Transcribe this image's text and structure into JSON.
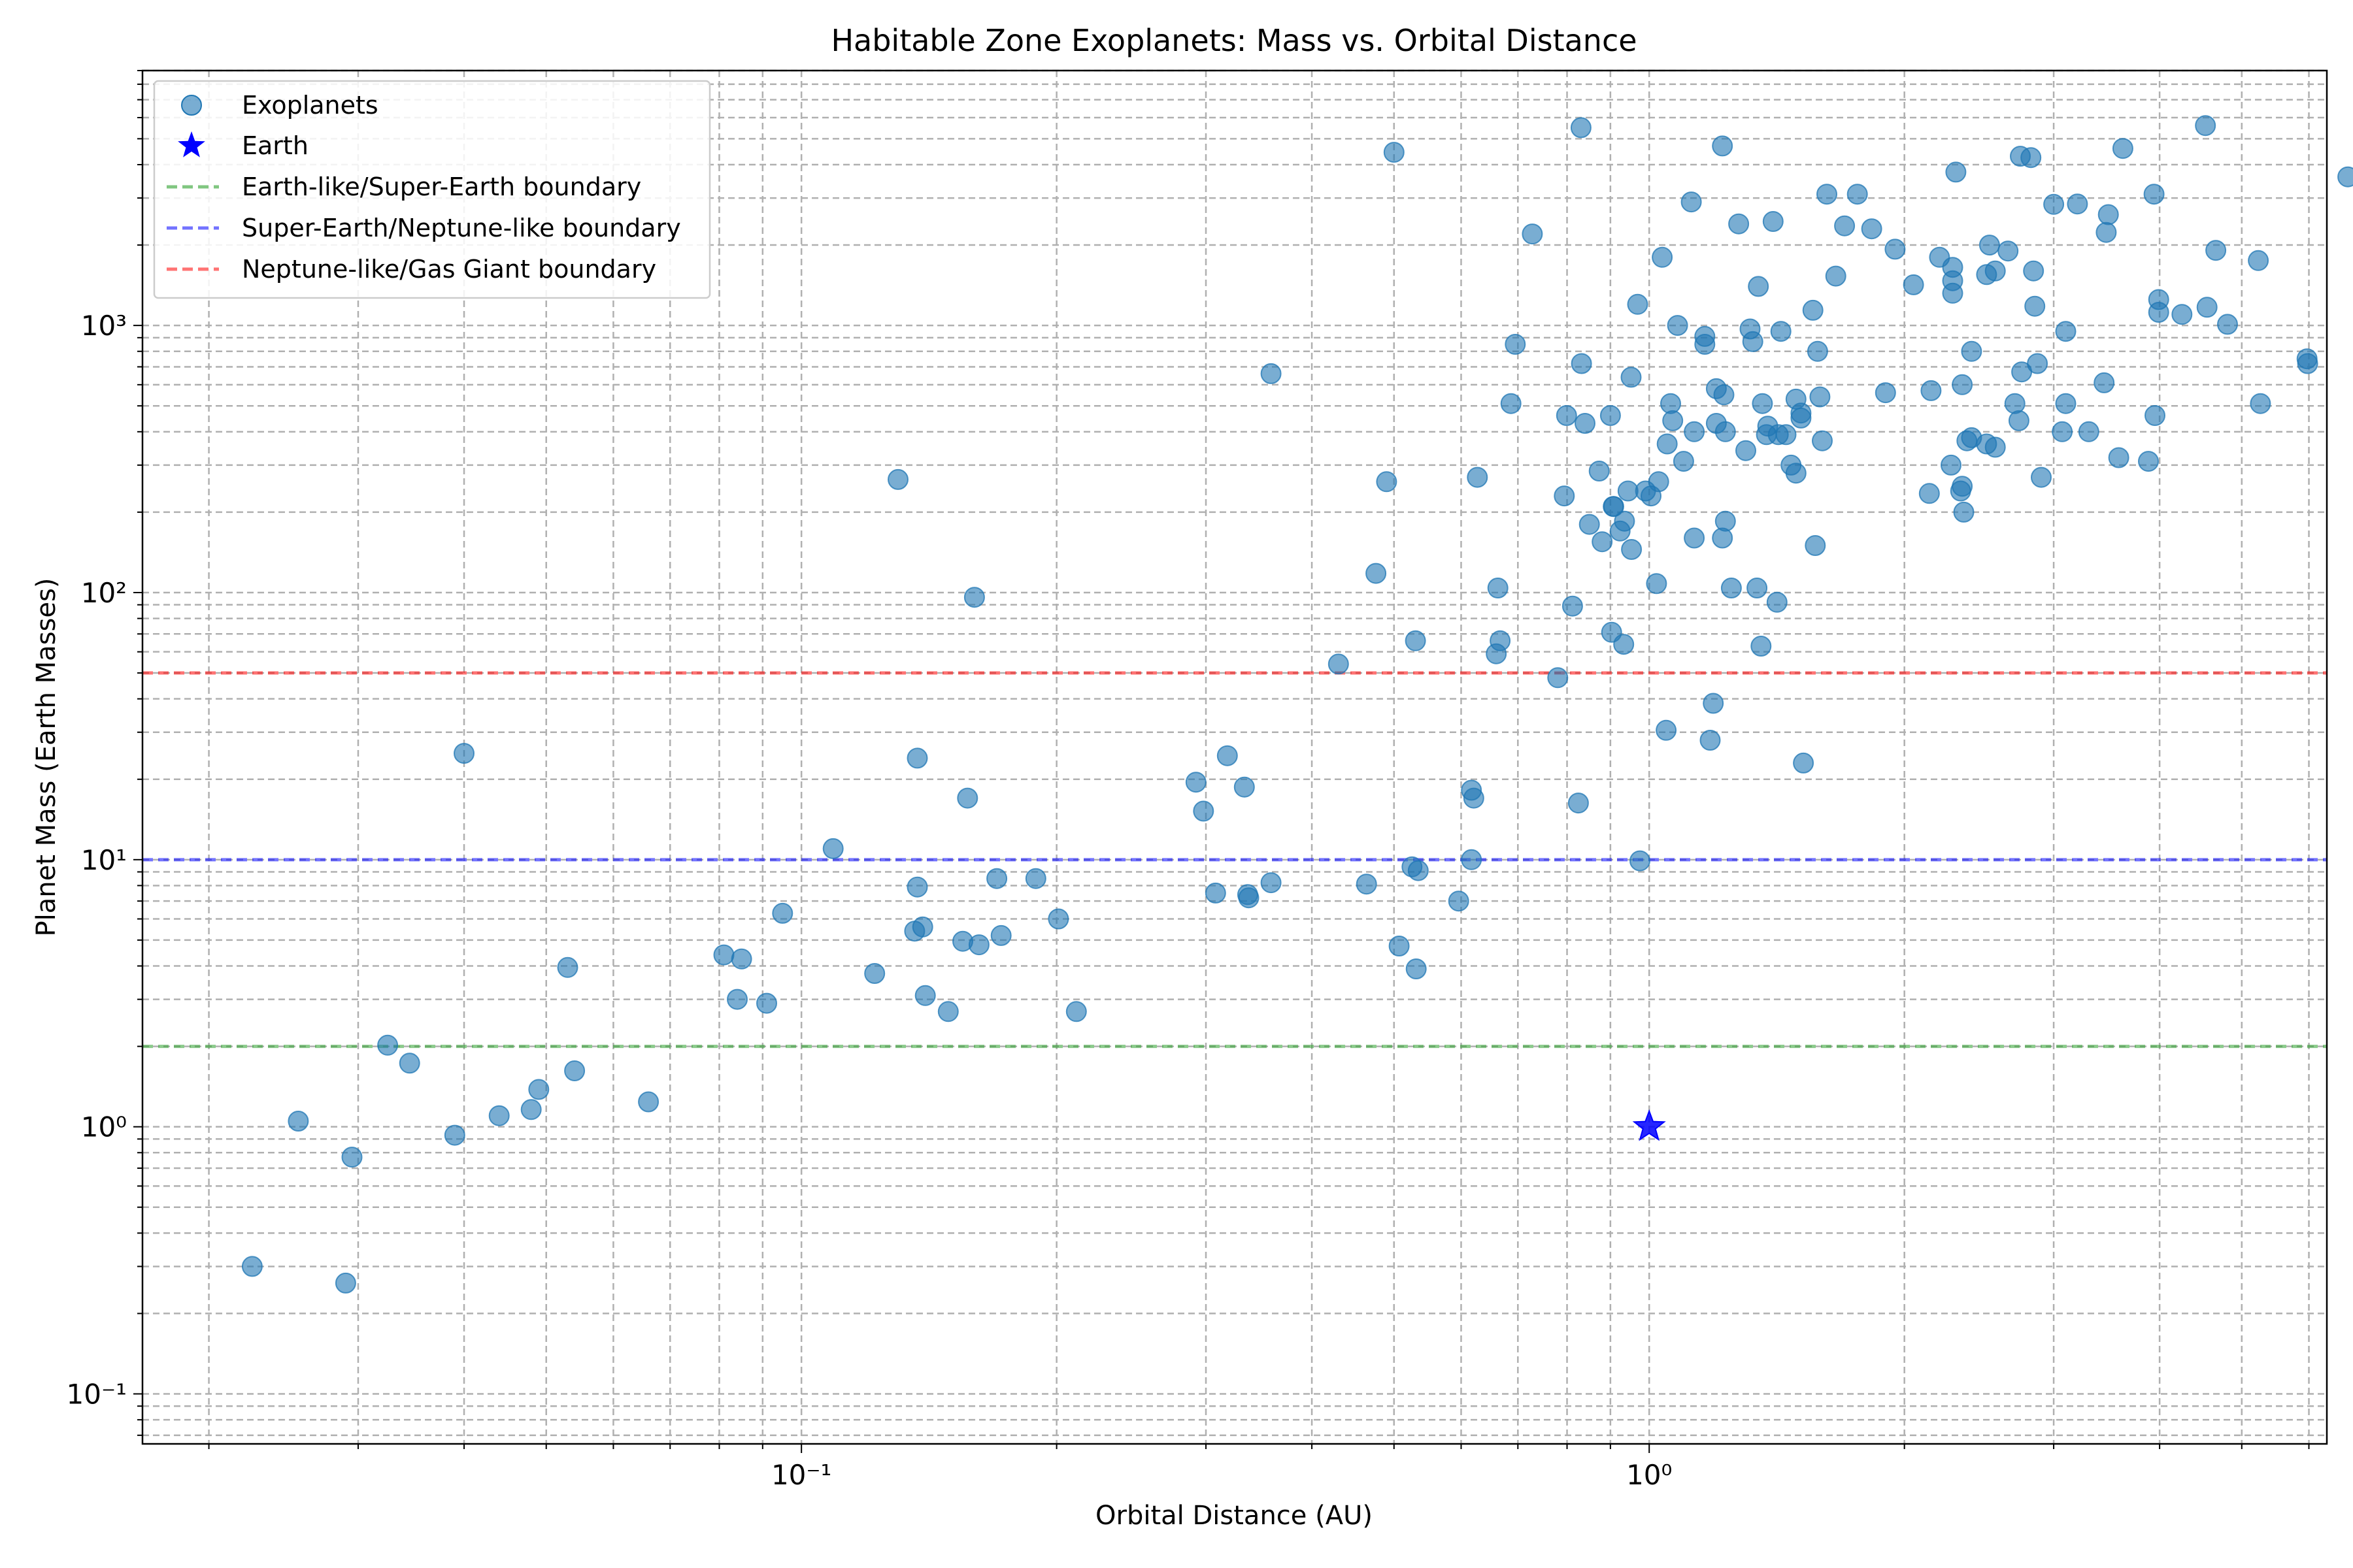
{
  "chart_data": {
    "type": "scatter",
    "title": "Habitable Zone Exoplanets: Mass vs. Orbital Distance",
    "xlabel": "Orbital Distance (AU)",
    "ylabel": "Planet Mass (Earth Masses)",
    "xscale": "log",
    "yscale": "log",
    "xlim": [
      0.0167,
      6.3
    ],
    "ylim": [
      0.065,
      9000
    ],
    "grid": true,
    "legend_position": "top-left",
    "x_ticks": [
      {
        "value": 0.1,
        "label": "10⁻¹"
      },
      {
        "value": 1,
        "label": "10⁰"
      }
    ],
    "y_ticks": [
      {
        "value": 0.1,
        "label": "10⁻¹"
      },
      {
        "value": 1,
        "label": "10⁰"
      },
      {
        "value": 10,
        "label": "10¹"
      },
      {
        "value": 100,
        "label": "10²"
      },
      {
        "value": 1000,
        "label": "10³"
      }
    ],
    "colors": {
      "exoplanets": "#1f77b4",
      "earth": "#0000ff",
      "earthlike_boundary": "#2ca02c",
      "superearth_boundary": "#0000ff",
      "neptune_boundary": "#ff0000"
    },
    "legend": [
      {
        "label": "Exoplanets",
        "kind": "marker-circle",
        "color": "#1f77b4"
      },
      {
        "label": "Earth",
        "kind": "marker-star",
        "color": "#0000ff"
      },
      {
        "label": "Earth-like/Super-Earth boundary",
        "kind": "dashed-line",
        "color": "#2ca02c"
      },
      {
        "label": "Super-Earth/Neptune-like boundary",
        "kind": "dashed-line",
        "color": "#0000ff"
      },
      {
        "label": "Neptune-like/Gas Giant boundary",
        "kind": "dashed-line",
        "color": "#ff0000"
      }
    ],
    "boundaries": [
      {
        "name": "Earth-like/Super-Earth boundary",
        "y": 2,
        "color": "#2ca02c"
      },
      {
        "name": "Super-Earth/Neptune-like boundary",
        "y": 10,
        "color": "#0000ff"
      },
      {
        "name": "Neptune-like/Gas Giant boundary",
        "y": 50,
        "color": "#ff0000"
      }
    ],
    "earth": {
      "name": "Earth",
      "x": 1.0,
      "y": 1.0
    },
    "series": [
      {
        "name": "Exoplanets",
        "points": [
          [
            0.0225,
            0.3
          ],
          [
            0.0255,
            1.05
          ],
          [
            0.029,
            0.26
          ],
          [
            0.0295,
            0.77
          ],
          [
            0.0325,
            2.02
          ],
          [
            0.0345,
            1.73
          ],
          [
            0.039,
            0.93
          ],
          [
            0.04,
            25.0
          ],
          [
            0.044,
            1.1
          ],
          [
            0.048,
            1.16
          ],
          [
            0.049,
            1.38
          ],
          [
            0.053,
            3.95
          ],
          [
            0.054,
            1.62
          ],
          [
            0.066,
            1.24
          ],
          [
            0.081,
            4.4
          ],
          [
            0.084,
            3.0
          ],
          [
            0.085,
            4.25
          ],
          [
            0.091,
            2.9
          ],
          [
            0.095,
            6.3
          ],
          [
            0.109,
            11.0
          ],
          [
            0.122,
            3.75
          ],
          [
            0.13,
            265
          ],
          [
            0.136,
            5.4
          ],
          [
            0.137,
            7.9
          ],
          [
            0.137,
            24.0
          ],
          [
            0.139,
            5.6
          ],
          [
            0.14,
            3.1
          ],
          [
            0.149,
            2.7
          ],
          [
            0.155,
            4.95
          ],
          [
            0.157,
            17.0
          ],
          [
            0.16,
            96
          ],
          [
            0.162,
            4.8
          ],
          [
            0.17,
            8.5
          ],
          [
            0.172,
            5.2
          ],
          [
            0.189,
            8.5
          ],
          [
            0.201,
            6.0
          ],
          [
            0.211,
            2.7
          ],
          [
            0.292,
            19.5
          ],
          [
            0.298,
            15.2
          ],
          [
            0.308,
            7.5
          ],
          [
            0.318,
            24.5
          ],
          [
            0.333,
            18.7
          ],
          [
            0.336,
            7.4
          ],
          [
            0.337,
            7.2
          ],
          [
            0.358,
            8.2
          ],
          [
            0.358,
            660
          ],
          [
            0.43,
            54
          ],
          [
            0.464,
            8.1
          ],
          [
            0.476,
            118
          ],
          [
            0.49,
            260
          ],
          [
            0.5,
            4450
          ],
          [
            0.507,
            4.75
          ],
          [
            0.525,
            9.4
          ],
          [
            0.53,
            66
          ],
          [
            0.531,
            3.9
          ],
          [
            0.534,
            9.1
          ],
          [
            0.596,
            7.0
          ],
          [
            0.617,
            18.2
          ],
          [
            0.617,
            10.0
          ],
          [
            0.621,
            17.0
          ],
          [
            0.627,
            270
          ],
          [
            0.66,
            59
          ],
          [
            0.663,
            104
          ],
          [
            0.667,
            66
          ],
          [
            0.687,
            510
          ],
          [
            0.695,
            850
          ],
          [
            0.728,
            2200
          ],
          [
            0.78,
            48
          ],
          [
            0.794,
            230
          ],
          [
            0.799,
            460
          ],
          [
            0.812,
            89
          ],
          [
            0.825,
            16.3
          ],
          [
            0.831,
            5500
          ],
          [
            0.832,
            720
          ],
          [
            0.84,
            430
          ],
          [
            0.85,
            180
          ],
          [
            0.873,
            285
          ],
          [
            0.88,
            155
          ],
          [
            0.9,
            460
          ],
          [
            0.903,
            71
          ],
          [
            0.907,
            210
          ],
          [
            0.908,
            210
          ],
          [
            0.924,
            170
          ],
          [
            0.933,
            64
          ],
          [
            0.935,
            185
          ],
          [
            0.944,
            240
          ],
          [
            0.952,
            640
          ],
          [
            0.953,
            145
          ],
          [
            0.969,
            1200
          ],
          [
            0.975,
            9.9
          ],
          [
            0.99,
            240
          ],
          [
            1.005,
            230
          ],
          [
            1.02,
            108
          ],
          [
            1.026,
            260
          ],
          [
            1.036,
            1800
          ],
          [
            1.047,
            30.5
          ],
          [
            1.05,
            360
          ],
          [
            1.06,
            510
          ],
          [
            1.066,
            440
          ],
          [
            1.08,
            1000
          ],
          [
            1.098,
            310
          ],
          [
            1.121,
            2900
          ],
          [
            1.13,
            160
          ],
          [
            1.13,
            400
          ],
          [
            1.163,
            850
          ],
          [
            1.163,
            910
          ],
          [
            1.18,
            28
          ],
          [
            1.19,
            38.5
          ],
          [
            1.2,
            430
          ],
          [
            1.2,
            580
          ],
          [
            1.22,
            4700
          ],
          [
            1.22,
            160
          ],
          [
            1.225,
            550
          ],
          [
            1.23,
            185
          ],
          [
            1.23,
            400
          ],
          [
            1.25,
            104
          ],
          [
            1.275,
            2400
          ],
          [
            1.3,
            340
          ],
          [
            1.315,
            970
          ],
          [
            1.325,
            870
          ],
          [
            1.34,
            104
          ],
          [
            1.345,
            1400
          ],
          [
            1.355,
            63
          ],
          [
            1.36,
            510
          ],
          [
            1.375,
            390
          ],
          [
            1.38,
            420
          ],
          [
            1.4,
            2450
          ],
          [
            1.415,
            92
          ],
          [
            1.42,
            390
          ],
          [
            1.43,
            950
          ],
          [
            1.45,
            390
          ],
          [
            1.47,
            300
          ],
          [
            1.49,
            280
          ],
          [
            1.49,
            530
          ],
          [
            1.51,
            470
          ],
          [
            1.51,
            450
          ],
          [
            1.52,
            23
          ],
          [
            1.56,
            1140
          ],
          [
            1.57,
            150
          ],
          [
            1.58,
            800
          ],
          [
            1.59,
            540
          ],
          [
            1.6,
            370
          ],
          [
            1.62,
            3100
          ],
          [
            1.66,
            1530
          ],
          [
            1.7,
            2360
          ],
          [
            1.76,
            3100
          ],
          [
            1.83,
            2300
          ],
          [
            1.9,
            560
          ],
          [
            1.95,
            1930
          ],
          [
            2.05,
            1420
          ],
          [
            2.14,
            235
          ],
          [
            2.15,
            570
          ],
          [
            2.2,
            1800
          ],
          [
            2.27,
            300
          ],
          [
            2.28,
            1650
          ],
          [
            2.28,
            1470
          ],
          [
            2.28,
            1320
          ],
          [
            2.3,
            3750
          ],
          [
            2.33,
            240
          ],
          [
            2.34,
            600
          ],
          [
            2.34,
            250
          ],
          [
            2.35,
            200
          ],
          [
            2.37,
            370
          ],
          [
            2.4,
            380
          ],
          [
            2.4,
            800
          ],
          [
            2.5,
            1550
          ],
          [
            2.5,
            360
          ],
          [
            2.52,
            2000
          ],
          [
            2.56,
            1600
          ],
          [
            2.56,
            350
          ],
          [
            2.65,
            1900
          ],
          [
            2.7,
            510
          ],
          [
            2.73,
            440
          ],
          [
            2.74,
            4300
          ],
          [
            2.75,
            670
          ],
          [
            2.82,
            4250
          ],
          [
            2.84,
            1600
          ],
          [
            2.85,
            1180
          ],
          [
            2.87,
            720
          ],
          [
            2.9,
            270
          ],
          [
            3.0,
            2840
          ],
          [
            3.07,
            400
          ],
          [
            3.1,
            950
          ],
          [
            3.1,
            510
          ],
          [
            3.2,
            2850
          ],
          [
            3.3,
            400
          ],
          [
            3.44,
            610
          ],
          [
            3.46,
            2230
          ],
          [
            3.48,
            2600
          ],
          [
            3.58,
            320
          ],
          [
            3.62,
            4600
          ],
          [
            3.88,
            310
          ],
          [
            3.94,
            3100
          ],
          [
            3.95,
            460
          ],
          [
            3.99,
            1120
          ],
          [
            3.99,
            1250
          ],
          [
            4.25,
            1100
          ],
          [
            4.53,
            5600
          ],
          [
            4.55,
            1170
          ],
          [
            4.66,
            1910
          ],
          [
            4.81,
            1010
          ],
          [
            5.23,
            1750
          ],
          [
            5.26,
            510
          ],
          [
            5.97,
            750
          ],
          [
            5.98,
            720
          ],
          [
            6.67,
            3600
          ]
        ]
      }
    ]
  }
}
